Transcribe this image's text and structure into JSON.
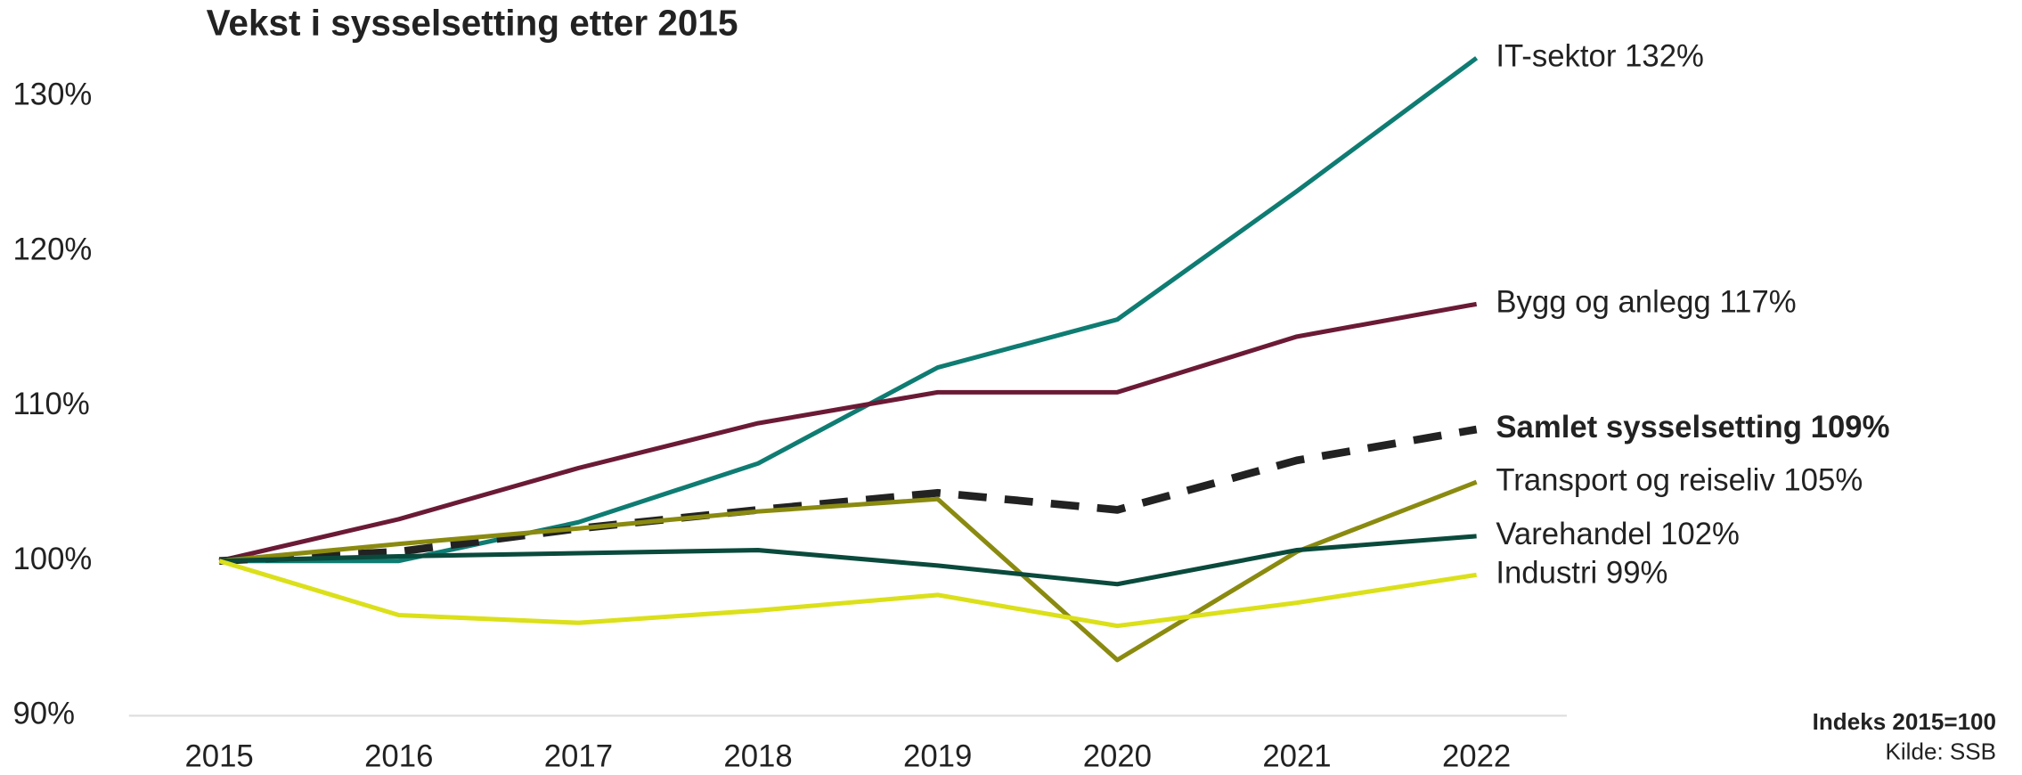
{
  "chart_data": {
    "type": "line",
    "title": "Vekst i sysselsetting etter 2015",
    "categories": [
      "2015",
      "2016",
      "2017",
      "2018",
      "2019",
      "2020",
      "2021",
      "2022"
    ],
    "series": [
      {
        "name": "IT-sektor",
        "label": "IT-sektor 132%",
        "color": "#0e7c72",
        "values": [
          100,
          100,
          102.5,
          106.3,
          112.5,
          115.6,
          123.9,
          132.5
        ]
      },
      {
        "name": "Bygg og anlegg",
        "label": "Bygg og anlegg 117%",
        "color": "#6b1a36",
        "values": [
          100,
          102.7,
          106,
          108.9,
          110.9,
          110.9,
          114.5,
          116.6
        ]
      },
      {
        "name": "Samlet sysselsetting",
        "label": "Samlet sysselsetting 109%",
        "color": "#222222",
        "dashed": true,
        "bold": true,
        "values": [
          100,
          100.6,
          102.1,
          103.3,
          104.4,
          103.3,
          106.5,
          108.5
        ]
      },
      {
        "name": "Transport og reiseliv",
        "label": "Transport og reiseliv 105%",
        "color": "#8a8a10",
        "values": [
          100,
          101.1,
          102.1,
          103.2,
          104,
          93.6,
          100.6,
          105.1
        ]
      },
      {
        "name": "Varehandel",
        "label": "Varehandel 102%",
        "color": "#0a4a3c",
        "values": [
          100,
          100.3,
          100.5,
          100.7,
          99.7,
          98.5,
          100.7,
          101.6
        ]
      },
      {
        "name": "Industri",
        "label": "Industri 99%",
        "color": "#dbe01a",
        "values": [
          100,
          96.5,
          96,
          96.8,
          97.8,
          95.8,
          97.3,
          99.1
        ]
      }
    ],
    "ylim": [
      90,
      135
    ],
    "yticks": [
      {
        "value": 90,
        "label": "90%"
      },
      {
        "value": 100,
        "label": "100%"
      },
      {
        "value": 110,
        "label": "110%"
      },
      {
        "value": 120,
        "label": "120%"
      },
      {
        "value": 130,
        "label": "130%"
      }
    ],
    "note": "Indeks 2015=100",
    "source": "Kilde: SSB"
  }
}
